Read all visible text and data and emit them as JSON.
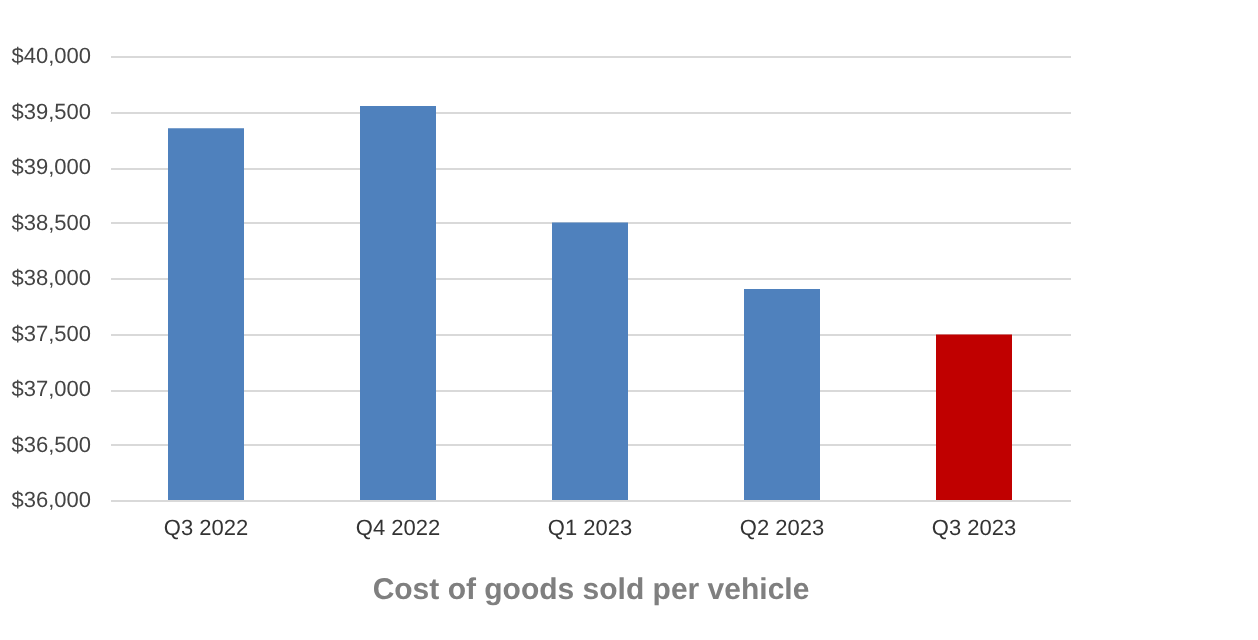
{
  "chart_data": {
    "type": "bar",
    "xlabel": "Cost of goods sold per vehicle",
    "categories": [
      "Q3 2022",
      "Q4 2022",
      "Q1 2023",
      "Q2 2023",
      "Q3 2023"
    ],
    "values": [
      39350,
      39550,
      38500,
      37900,
      37490
    ],
    "colors": [
      "#4f81bd",
      "#4f81bd",
      "#4f81bd",
      "#4f81bd",
      "#c00000"
    ],
    "ylim": [
      36000,
      40000
    ],
    "yticks": [
      {
        "value": 36000,
        "label": "$36,000"
      },
      {
        "value": 36500,
        "label": "$36,500"
      },
      {
        "value": 37000,
        "label": "$37,000"
      },
      {
        "value": 37500,
        "label": "$37,500"
      },
      {
        "value": 38000,
        "label": "$38,000"
      },
      {
        "value": 38500,
        "label": "$38,500"
      },
      {
        "value": 39000,
        "label": "$39,000"
      },
      {
        "value": 39500,
        "label": "$39,500"
      },
      {
        "value": 40000,
        "label": "$40,000"
      }
    ],
    "grid": "y"
  }
}
